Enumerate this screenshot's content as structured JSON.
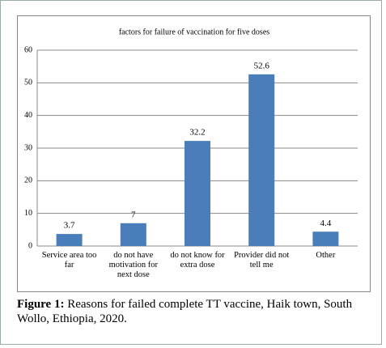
{
  "chart_data": {
    "type": "bar",
    "title": "factors  for failure  of vaccination  for five  doses",
    "categories": [
      "Service area too far",
      "do not have motivation for next dose",
      "do not know for extra dose",
      "Provider did not tell me",
      "Other"
    ],
    "values": [
      3.7,
      7,
      32.2,
      52.6,
      4.4
    ],
    "color": "#4a7ebb",
    "ylim": [
      0,
      60
    ],
    "yticks": [
      0,
      10,
      20,
      30,
      40,
      50,
      60
    ],
    "grid": true
  },
  "caption": {
    "label": "Figure 1:",
    "text": "Reasons for failed complete TT vaccine, Haik town, South Wollo, Ethiopia, 2020."
  }
}
